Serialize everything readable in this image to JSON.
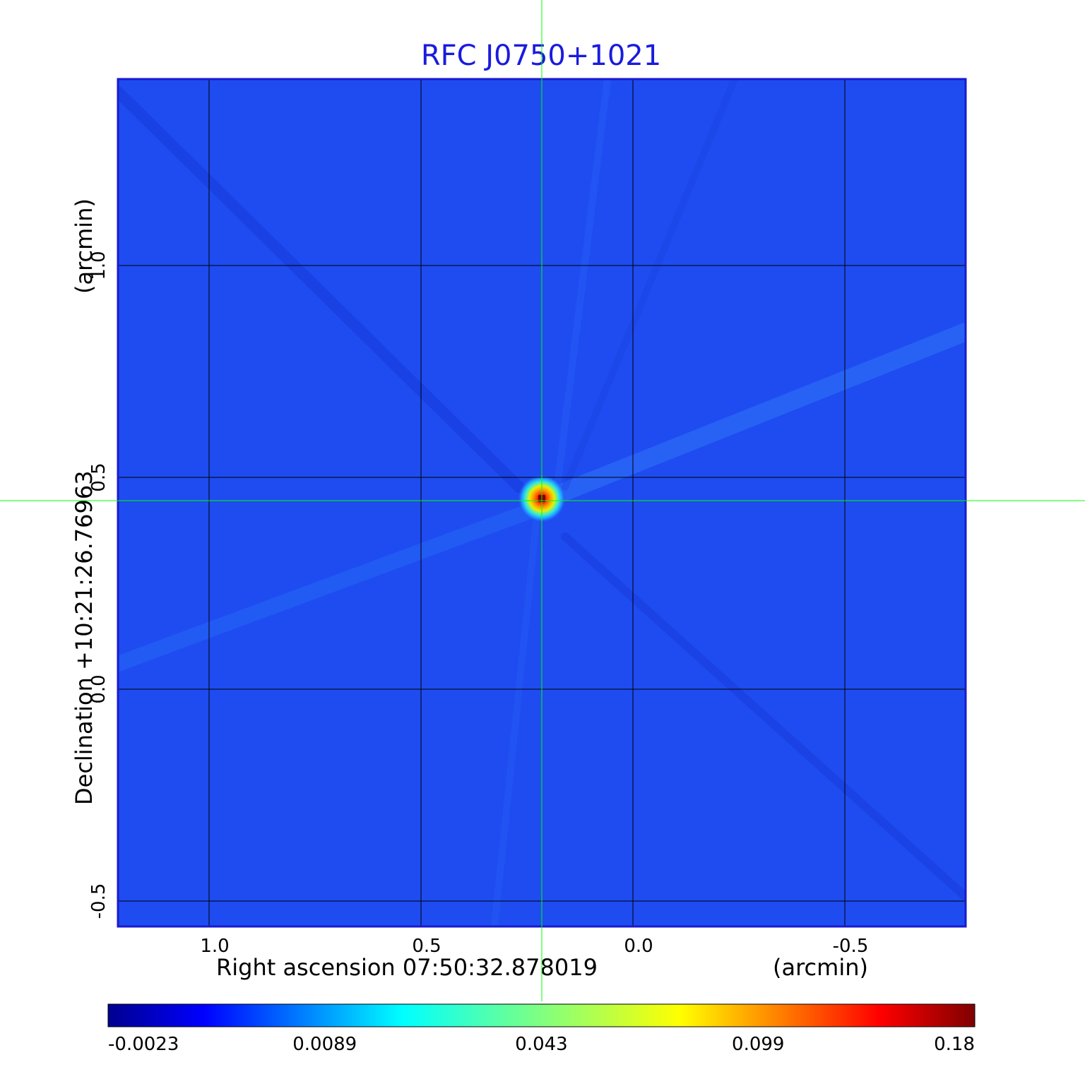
{
  "chart_data": {
    "type": "heatmap",
    "title": "RFC J0750+1021",
    "xlabel": "Right ascension  07:50:32.878019",
    "xunit": "(arcmin)",
    "ylabel": "Declination  +10:21:26.76963",
    "yunit": "(arcmin)",
    "x_ticks": [
      1.0,
      0.5,
      0.0,
      -0.5
    ],
    "x_tick_labels": [
      "1.0",
      "0.5",
      "0.0",
      "-0.5"
    ],
    "y_ticks": [
      1.0,
      0.5,
      0.0,
      -0.5
    ],
    "y_tick_labels": [
      "1.0",
      "0.5",
      "0.0",
      "-0.5"
    ],
    "xlim": [
      1.215,
      -0.785
    ],
    "ylim": [
      -0.56,
      1.44
    ],
    "x_direction": "decreasing to the right",
    "grid": true,
    "grid_color": "#000000",
    "crosshair": {
      "x": 0.215,
      "y": 0.445,
      "color": "#00ff00"
    },
    "peak": {
      "x": 0.215,
      "y": 0.45,
      "value": 0.18
    },
    "background_value": 0.0,
    "colormap": "jet",
    "colorbar": {
      "placement": "bottom",
      "tick_labels": [
        "-0.0023",
        "0.0089",
        "0.043",
        "0.099",
        "0.18"
      ],
      "min": -0.0023,
      "max": 0.18
    },
    "colors": {
      "background_blue": "#1e4cf0",
      "frame": "#1a1ad0",
      "title": "#1a1adf"
    }
  }
}
